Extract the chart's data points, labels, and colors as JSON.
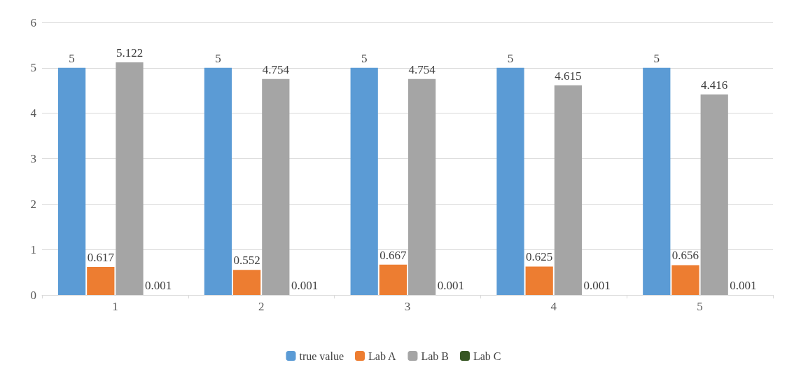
{
  "chart_data": {
    "type": "bar",
    "categories": [
      "1",
      "2",
      "3",
      "4",
      "5"
    ],
    "series": [
      {
        "name": "true value",
        "color": "#5b9bd5",
        "values": [
          5,
          5,
          5,
          5,
          5
        ]
      },
      {
        "name": "Lab A",
        "color": "#ed7d31",
        "values": [
          0.617,
          0.552,
          0.667,
          0.625,
          0.656
        ]
      },
      {
        "name": "Lab B",
        "color": "#a5a5a5",
        "values": [
          5.122,
          4.754,
          4.754,
          4.615,
          4.416
        ]
      },
      {
        "name": "Lab C",
        "color": "#375623",
        "values": [
          0.001,
          0.001,
          0.001,
          0.001,
          0.001
        ]
      }
    ],
    "ylim": [
      0,
      6
    ],
    "yticks": [
      0,
      1,
      2,
      3,
      4,
      5,
      6
    ],
    "grid": "y",
    "legend": "bottom",
    "data_labels": true
  }
}
